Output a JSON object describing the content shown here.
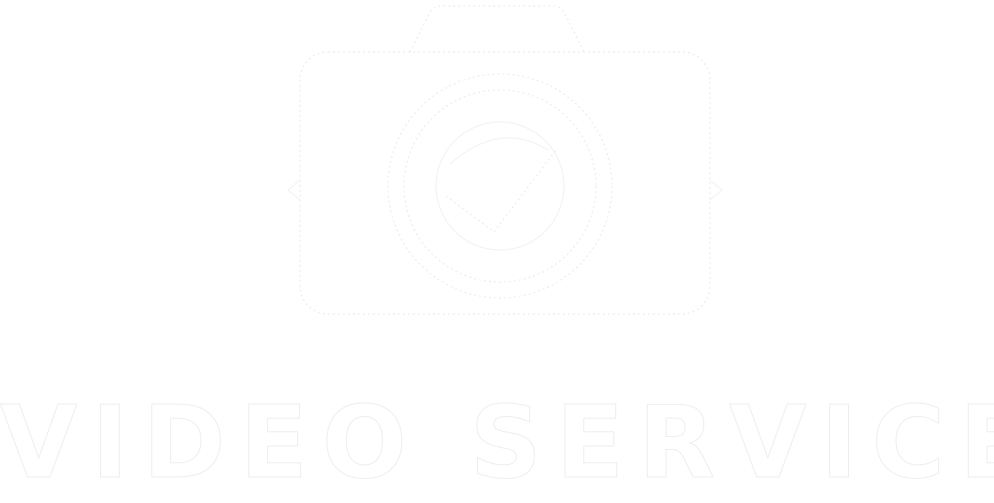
{
  "logo": {
    "wordmark": "VIDEO SERVICE",
    "icon": "camera-icon",
    "colors": {
      "background": "#ffffff",
      "fill": "#ffffff",
      "outline": "#ececec"
    }
  }
}
